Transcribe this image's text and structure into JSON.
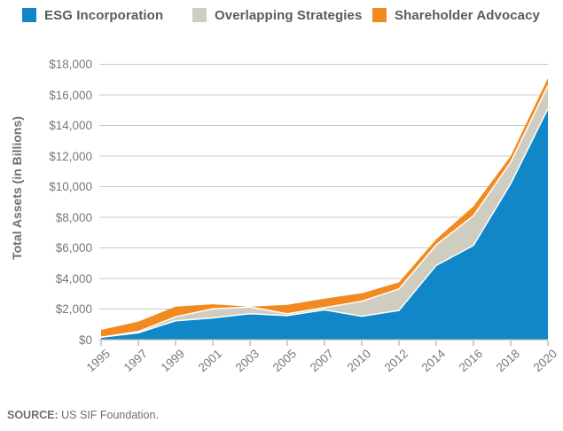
{
  "chart_data": {
    "type": "area",
    "stacked": true,
    "categories": [
      "1995",
      "1997",
      "1999",
      "2001",
      "2003",
      "2005",
      "2007",
      "2010",
      "2012",
      "2014",
      "2016",
      "2018",
      "2020"
    ],
    "series": [
      {
        "name": "ESG Incorporation",
        "color": "#1186c9",
        "values": [
          160,
          445,
          1230,
          1420,
          1700,
          1570,
          1945,
          1530,
          1905,
          4850,
          6160,
          10200,
          15100
        ]
      },
      {
        "name": "Overlapping Strategies",
        "color": "#cfccc0",
        "values": [
          0,
          85,
          265,
          590,
          440,
          115,
          150,
          980,
          1410,
          1350,
          1940,
          1400,
          1500
        ]
      },
      {
        "name": "Shareholder Advocacy",
        "color": "#f28a21",
        "values": [
          475,
          655,
          660,
          305,
          25,
          585,
          590,
          520,
          430,
          370,
          620,
          400,
          500
        ]
      }
    ],
    "totals": [
      635,
      1185,
      2155,
      2315,
      2165,
      2270,
      2685,
      3030,
      3745,
      6570,
      8720,
      12000,
      17100
    ],
    "title": "",
    "xlabel": "",
    "ylabel": "Total Assets (in Billions)",
    "ylim": [
      0,
      18000
    ],
    "ytick_step": 2000,
    "ytick_labels": [
      "$0",
      "$2,000",
      "$4,000",
      "$6,000",
      "$8,000",
      "$10,000",
      "$12,000",
      "$14,000",
      "$16,000",
      "$18,000"
    ],
    "grid": "horizontal",
    "legend_position": "top"
  },
  "source": {
    "label": "SOURCE:",
    "text": "US SIF Foundation."
  },
  "colors": {
    "background": "#ffffff",
    "gridline": "#c9c9c9",
    "axis_line": "#b3b3b3",
    "separator": "#ffffff",
    "tick_label_text": "#77787b",
    "legend_text": "#595b5e",
    "source_text": "#6d6e70"
  }
}
